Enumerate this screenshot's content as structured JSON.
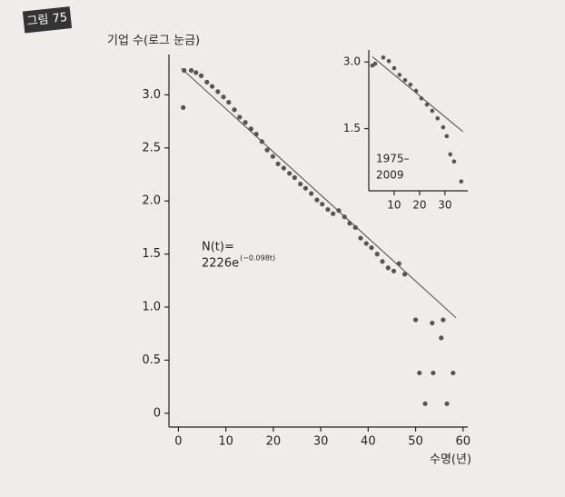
{
  "figure_label": "그림 75",
  "chart_data": [
    {
      "type": "scatter",
      "y_label": "기업 수(로그 눈금)",
      "x_label": "수명(년)",
      "annotation": [
        "N(t)=",
        "2226e"
      ],
      "annotation_superscript": "(−0.098t)",
      "color": "#555",
      "fit_color": "#444",
      "x": [
        1,
        1.2,
        2.7,
        3.7,
        4.8,
        6,
        7.1,
        8.3,
        9.5,
        10.6,
        11.8,
        12.9,
        14.1,
        15.3,
        16.4,
        17.6,
        18.7,
        19.9,
        21,
        22.2,
        23.4,
        24.5,
        25.7,
        26.8,
        28,
        29.2,
        30.3,
        31.5,
        32.6,
        33.8,
        35,
        36.1,
        37.3,
        38.4,
        39.6,
        40.7,
        41.9,
        43,
        44.2,
        45.4,
        46.5,
        47.7,
        50,
        53.5,
        55.8,
        55.4,
        50.8,
        53.7,
        57.9,
        52,
        56.6
      ],
      "values": [
        2.88,
        3.23,
        3.23,
        3.21,
        3.18,
        3.12,
        3.08,
        3.03,
        2.98,
        2.93,
        2.86,
        2.79,
        2.74,
        2.68,
        2.63,
        2.56,
        2.48,
        2.42,
        2.35,
        2.31,
        2.26,
        2.22,
        2.16,
        2.12,
        2.07,
        2.01,
        1.97,
        1.92,
        1.88,
        1.91,
        1.85,
        1.79,
        1.75,
        1.65,
        1.6,
        1.56,
        1.5,
        1.43,
        1.37,
        1.34,
        1.41,
        1.31,
        0.88,
        0.85,
        0.88,
        0.71,
        0.38,
        0.38,
        0.38,
        0.09,
        0.09
      ],
      "fit": {
        "x": [
          0.6,
          58.5
        ],
        "values": [
          3.25,
          0.9
        ]
      },
      "xlim": [
        -2,
        61
      ],
      "ylim": [
        -0.13,
        3.38
      ],
      "xticks": [
        0,
        10,
        20,
        30,
        40,
        50,
        60
      ],
      "yticks": [
        0,
        0.5,
        {
          "value": 1,
          "label": "1.0"
        },
        1.5,
        {
          "value": 2,
          "label": "2.0"
        },
        2.5,
        {
          "value": 3,
          "label": "3.0"
        }
      ]
    },
    {
      "type": "scatter",
      "annotation": [
        "1975–",
        "2009"
      ],
      "color": "#555",
      "fit_color": "#444",
      "x": [
        1.4,
        2.5,
        5.7,
        7.9,
        10,
        12.1,
        14.3,
        16.4,
        18.6,
        20.7,
        22.9,
        25,
        27.1,
        29.3,
        30.7,
        32.1,
        33.6,
        36.4
      ],
      "values": [
        2.92,
        2.96,
        3.1,
        3.02,
        2.86,
        2.71,
        2.59,
        2.49,
        2.35,
        2.18,
        2.04,
        1.9,
        1.73,
        1.53,
        1.33,
        0.92,
        0.76,
        0.31
      ],
      "fit": {
        "x": [
          1.4,
          37.1
        ],
        "values": [
          3.12,
          1.43
        ]
      },
      "xlim": [
        0,
        39
      ],
      "ylim": [
        0.1,
        3.27
      ],
      "xticks": [
        10,
        20,
        30
      ],
      "yticks": [
        1.5,
        {
          "value": 3,
          "label": "3.0"
        }
      ]
    }
  ]
}
